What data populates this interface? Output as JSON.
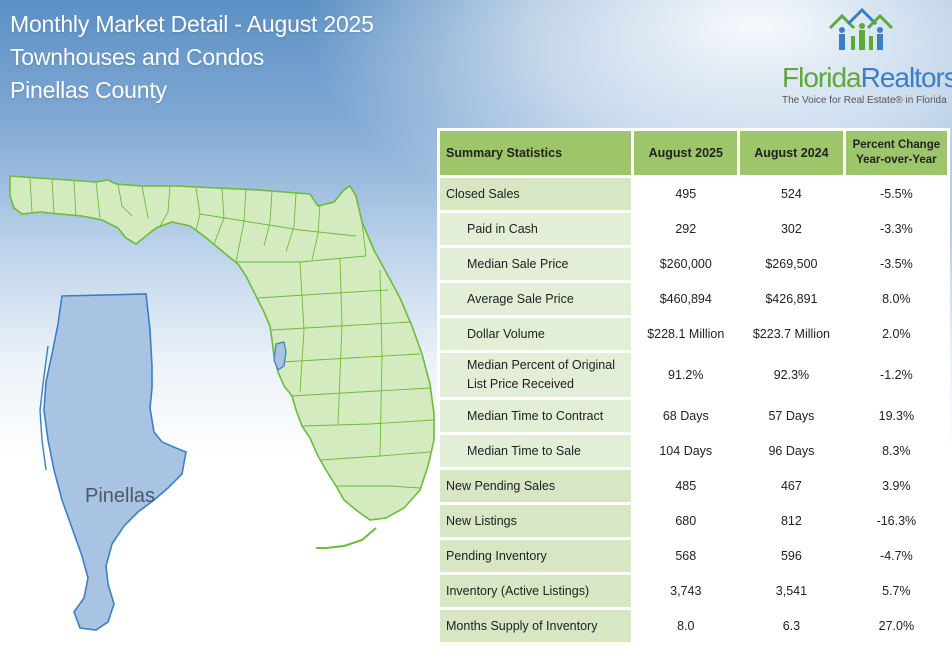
{
  "header": {
    "title_line1": "Monthly Market Detail - August 2025",
    "title_line2": "Townhouses and Condos",
    "title_line3": "Pinellas County"
  },
  "logo": {
    "brand_part1": "Florida",
    "brand_part2": "Realtors",
    "registered": "®",
    "tagline": "The Voice for Real Estate® in Florida",
    "icon": "houses-people-icon",
    "colors": {
      "green": "#5fa83a",
      "blue": "#3b7fc4"
    }
  },
  "map": {
    "county_label": "Pinellas",
    "highlight_color": "#a9c4e2",
    "state_fill": "#d4ebc0",
    "state_stroke": "#6dbb3b"
  },
  "table": {
    "headers": {
      "summary": "Summary Statistics",
      "current": "August 2025",
      "previous": "August 2024",
      "change_line1": "Percent Change",
      "change_line2": "Year-over-Year"
    },
    "rows": [
      {
        "label": "Closed Sales",
        "current": "495",
        "previous": "524",
        "change": "-5.5%"
      },
      {
        "label": "Paid in Cash",
        "current": "292",
        "previous": "302",
        "change": "-3.3%"
      },
      {
        "label": "Median Sale Price",
        "current": "$260,000",
        "previous": "$269,500",
        "change": "-3.5%"
      },
      {
        "label": "Average Sale Price",
        "current": "$460,894",
        "previous": "$426,891",
        "change": "8.0%"
      },
      {
        "label": "Dollar Volume",
        "current": "$228.1 Million",
        "previous": "$223.7 Million",
        "change": "2.0%"
      },
      {
        "label_line1": "Median Percent of Original",
        "label_line2": "List Price Received",
        "current": "91.2%",
        "previous": "92.3%",
        "change": "-1.2%"
      },
      {
        "label": "Median Time to Contract",
        "current": "68 Days",
        "previous": "57 Days",
        "change": "19.3%"
      },
      {
        "label": "Median Time to Sale",
        "current": "104 Days",
        "previous": "96 Days",
        "change": "8.3%"
      },
      {
        "label": "New Pending Sales",
        "current": "485",
        "previous": "467",
        "change": "3.9%"
      },
      {
        "label": "New Listings",
        "current": "680",
        "previous": "812",
        "change": "-16.3%"
      },
      {
        "label": "Pending Inventory",
        "current": "568",
        "previous": "596",
        "change": "-4.7%"
      },
      {
        "label": "Inventory (Active Listings)",
        "current": "3,743",
        "previous": "3,541",
        "change": "5.7%"
      },
      {
        "label": "Months Supply of Inventory",
        "current": "8.0",
        "previous": "6.3",
        "change": "27.0%"
      }
    ]
  }
}
